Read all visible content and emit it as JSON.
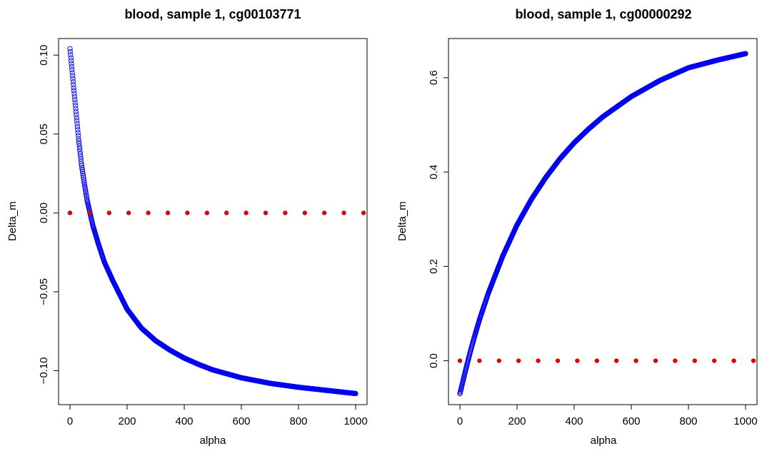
{
  "colors": {
    "curve": "#0000ee",
    "reference": "#dd0000"
  },
  "chart_data": [
    {
      "type": "scatter",
      "title": "blood, sample 1, cg00103771",
      "xlabel": "alpha",
      "ylabel": "Delta_m",
      "xlim": [
        -40,
        1040
      ],
      "ylim": [
        -0.1215,
        0.1105
      ],
      "xticks": [
        0,
        200,
        400,
        600,
        800,
        1000
      ],
      "xtick_labels": [
        "0",
        "200",
        "400",
        "600",
        "800",
        "1000"
      ],
      "yticks": [
        -0.1,
        -0.05,
        0.0,
        0.05,
        0.1
      ],
      "ytick_labels": [
        "−0.10",
        "−0.05",
        "0.00",
        "0.05",
        "0.10"
      ],
      "series": [
        {
          "style": "open circles",
          "color": "#0000ee",
          "x": [
            0,
            10,
            20,
            30,
            40,
            50,
            60,
            70,
            80,
            100,
            120,
            150,
            200,
            250,
            300,
            350,
            400,
            450,
            500,
            550,
            600,
            700,
            800,
            900,
            1000
          ],
          "y": [
            0.104,
            0.085,
            0.066,
            0.047,
            0.031,
            0.019,
            0.008,
            0.0,
            -0.008,
            -0.02,
            -0.031,
            -0.043,
            -0.061,
            -0.073,
            -0.081,
            -0.087,
            -0.092,
            -0.096,
            -0.0995,
            -0.102,
            -0.1045,
            -0.108,
            -0.1105,
            -0.1125,
            -0.1145
          ]
        },
        {
          "style": "dotted",
          "color": "#dd0000",
          "x": [
            0,
            68.5,
            137,
            205.5,
            274,
            342.5,
            411,
            479.5,
            548,
            616.5,
            685,
            753.5,
            822,
            890.5,
            959,
            1027.5
          ],
          "y": [
            0,
            0,
            0,
            0,
            0,
            0,
            0,
            0,
            0,
            0,
            0,
            0,
            0,
            0,
            0,
            0
          ]
        }
      ]
    },
    {
      "type": "scatter",
      "title": "blood, sample 1, cg00000292",
      "xlabel": "alpha",
      "ylabel": "Delta_m",
      "xlim": [
        -40,
        1040
      ],
      "ylim": [
        -0.093,
        0.683
      ],
      "xticks": [
        0,
        200,
        400,
        600,
        800,
        1000
      ],
      "xtick_labels": [
        "0",
        "200",
        "400",
        "600",
        "800",
        "1000"
      ],
      "yticks": [
        0.0,
        0.2,
        0.4,
        0.6
      ],
      "ytick_labels": [
        "0.0",
        "0.2",
        "0.4",
        "0.6"
      ],
      "series": [
        {
          "style": "open circles",
          "color": "#0000ee",
          "x": [
            0,
            10,
            20,
            30,
            40,
            50,
            70,
            100,
            150,
            200,
            250,
            300,
            350,
            400,
            450,
            500,
            600,
            700,
            800,
            900,
            1000
          ],
          "y": [
            -0.07,
            -0.045,
            -0.02,
            0.004,
            0.027,
            0.049,
            0.09,
            0.144,
            0.222,
            0.288,
            0.342,
            0.388,
            0.428,
            0.462,
            0.491,
            0.517,
            0.56,
            0.594,
            0.621,
            0.637,
            0.651
          ]
        },
        {
          "style": "dotted",
          "color": "#dd0000",
          "x": [
            0,
            68.5,
            137,
            205.5,
            274,
            342.5,
            411,
            479.5,
            548,
            616.5,
            685,
            753.5,
            822,
            890.5,
            959,
            1027.5
          ],
          "y": [
            0,
            0,
            0,
            0,
            0,
            0,
            0,
            0,
            0,
            0,
            0,
            0,
            0,
            0,
            0,
            0
          ]
        }
      ]
    }
  ]
}
